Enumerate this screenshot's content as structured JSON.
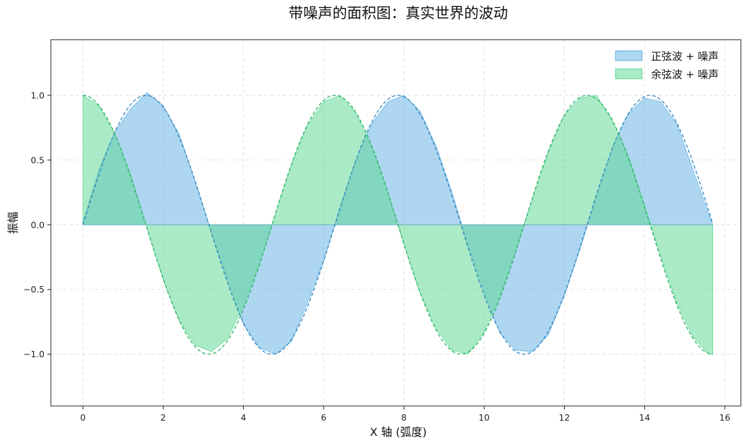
{
  "chart_data": {
    "type": "area",
    "title": "带噪声的面积图：真实世界的波动",
    "xlabel": "X 轴 (弧度)",
    "ylabel": "振幅",
    "xlim": [
      -0.8,
      16.4
    ],
    "ylim": [
      -1.4,
      1.43
    ],
    "xticks": [
      0,
      2,
      4,
      6,
      8,
      10,
      12,
      14,
      16
    ],
    "yticks": [
      -1.0,
      -0.5,
      0.0,
      0.5,
      1.0
    ],
    "xtick_labels": [
      "0",
      "2",
      "4",
      "6",
      "8",
      "10",
      "12",
      "14",
      "16"
    ],
    "ytick_labels": [
      "−1.0",
      "−0.5",
      "0.0",
      "0.5",
      "1.0"
    ],
    "grid": true,
    "legend_position": "top-right",
    "x": [
      0.0,
      0.4,
      0.8,
      1.2,
      1.6,
      2.0,
      2.4,
      2.8,
      3.2,
      3.6,
      4.0,
      4.4,
      4.8,
      5.2,
      5.6,
      6.0,
      6.4,
      6.8,
      7.2,
      7.6,
      8.0,
      8.4,
      8.8,
      9.2,
      9.6,
      10.0,
      10.4,
      10.8,
      11.2,
      11.6,
      12.0,
      12.4,
      12.8,
      13.2,
      13.6,
      14.0,
      14.4,
      14.8,
      15.2,
      15.6,
      15.7
    ],
    "series": [
      {
        "name": "正弦波 + 噪声",
        "color": "#5dade2",
        "fill_opacity": 0.5,
        "values": [
          0.02,
          0.43,
          0.72,
          0.9,
          1.02,
          0.92,
          0.7,
          0.33,
          -0.06,
          -0.42,
          -0.77,
          -0.95,
          -1.0,
          -0.9,
          -0.6,
          -0.28,
          0.13,
          0.5,
          0.78,
          0.95,
          1.0,
          0.88,
          0.61,
          0.25,
          -0.16,
          -0.52,
          -0.84,
          -0.97,
          -0.98,
          -0.85,
          -0.55,
          -0.18,
          0.22,
          0.6,
          0.86,
          0.98,
          0.95,
          0.78,
          0.43,
          0.08,
          0.0
        ]
      },
      {
        "name": "余弦波 + 噪声",
        "color": "#58d68d",
        "fill_opacity": 0.5,
        "values": [
          1.0,
          0.92,
          0.7,
          0.38,
          -0.03,
          -0.42,
          -0.74,
          -0.93,
          -0.98,
          -0.88,
          -0.63,
          -0.3,
          0.08,
          0.47,
          0.77,
          0.95,
          1.0,
          0.87,
          0.6,
          0.25,
          -0.15,
          -0.52,
          -0.8,
          -0.97,
          -1.0,
          -0.83,
          -0.55,
          -0.19,
          0.2,
          0.56,
          0.85,
          0.98,
          1.0,
          0.8,
          0.53,
          0.15,
          -0.24,
          -0.6,
          -0.86,
          -1.0,
          -1.0
        ]
      }
    ],
    "reference_curves": [
      {
        "of_series": "正弦波 + 噪声",
        "function": "sin",
        "color": "#2e86c1",
        "style": "dashed"
      },
      {
        "of_series": "余弦波 + 噪声",
        "function": "cos",
        "color": "#28b463",
        "style": "dashed"
      }
    ]
  }
}
